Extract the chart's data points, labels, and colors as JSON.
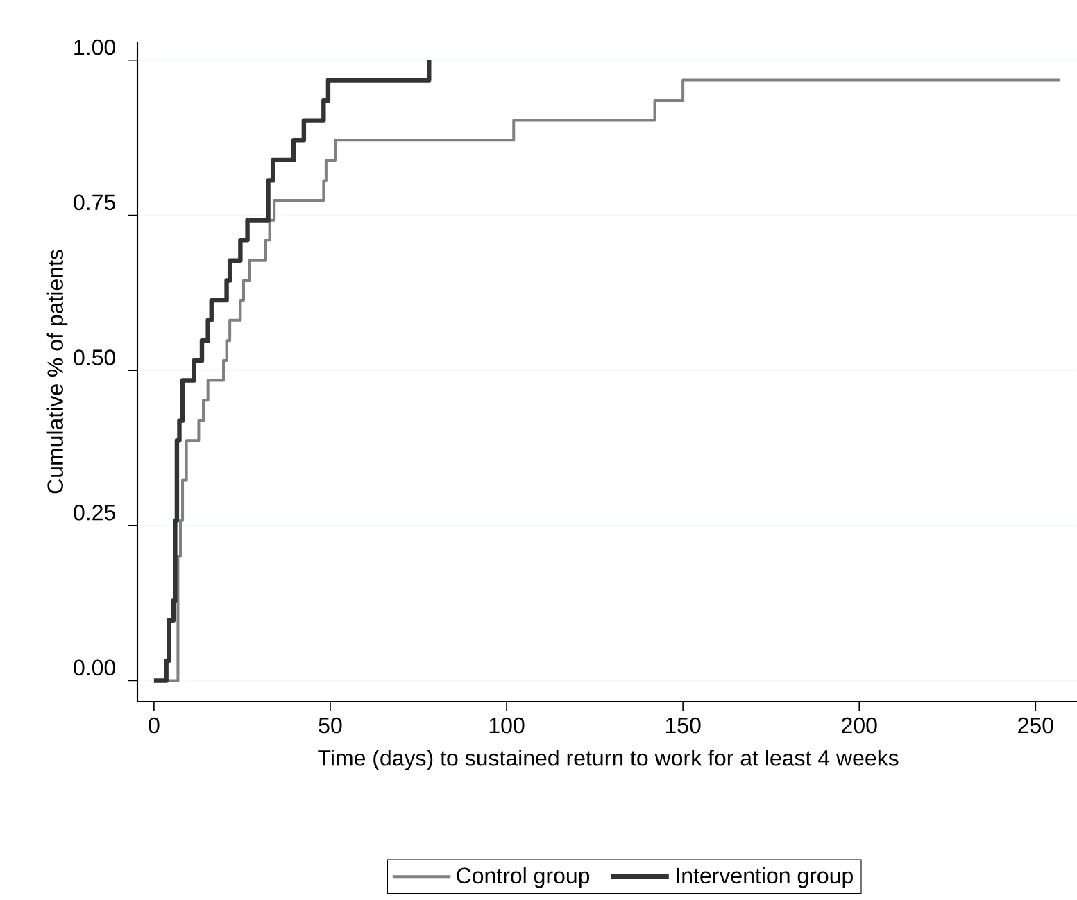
{
  "chart_data": {
    "type": "step",
    "xlabel": "Time (days) to sustained return to work for at least 4 weeks",
    "ylabel": "Cumulative % of patients",
    "xlim": [
      -4.7,
      262.4
    ],
    "ylim": [
      -0.034,
      1.03
    ],
    "xticks": [
      0,
      50,
      100,
      150,
      200,
      250
    ],
    "yticks": [
      {
        "value": 0,
        "label": "0.00"
      },
      {
        "value": 0.25,
        "label": "0.25"
      },
      {
        "value": 0.5,
        "label": "0.50"
      },
      {
        "value": 0.75,
        "label": "0.75"
      },
      {
        "value": 1,
        "label": "1.00"
      }
    ],
    "grid": "y",
    "legend": "bottom",
    "series": [
      {
        "name": "Control group",
        "color": "#808080",
        "x": [
          1.6,
          6.8,
          7.5,
          8.1,
          9.2,
          12.7,
          14.0,
          15.3,
          19.7,
          20.6,
          21.5,
          24.5,
          25.4,
          27.1,
          31.7,
          32.8,
          34.1,
          48.1,
          48.8,
          51.4,
          102,
          142,
          150,
          257
        ],
        "values": [
          0,
          0.2,
          0.258,
          0.323,
          0.387,
          0.419,
          0.452,
          0.484,
          0.516,
          0.548,
          0.581,
          0.613,
          0.645,
          0.677,
          0.71,
          0.742,
          0.774,
          0.806,
          0.839,
          0.871,
          0.903,
          0.935,
          0.968,
          0.968
        ]
      },
      {
        "name": "Intervention group",
        "color": "#333333",
        "x": [
          0,
          3.5,
          4.2,
          5.5,
          6.0,
          6.5,
          7.2,
          8.1,
          11.4,
          13.6,
          15.3,
          16.3,
          20.6,
          21.5,
          24.5,
          26.5,
          32.4,
          33.7,
          39.6,
          42.5,
          48.1,
          49.4,
          78,
          78
        ],
        "values": [
          0,
          0.032,
          0.097,
          0.129,
          0.258,
          0.387,
          0.419,
          0.484,
          0.516,
          0.548,
          0.581,
          0.613,
          0.645,
          0.677,
          0.71,
          0.742,
          0.806,
          0.839,
          0.871,
          0.903,
          0.935,
          0.968,
          0.968,
          1.0
        ]
      }
    ]
  }
}
